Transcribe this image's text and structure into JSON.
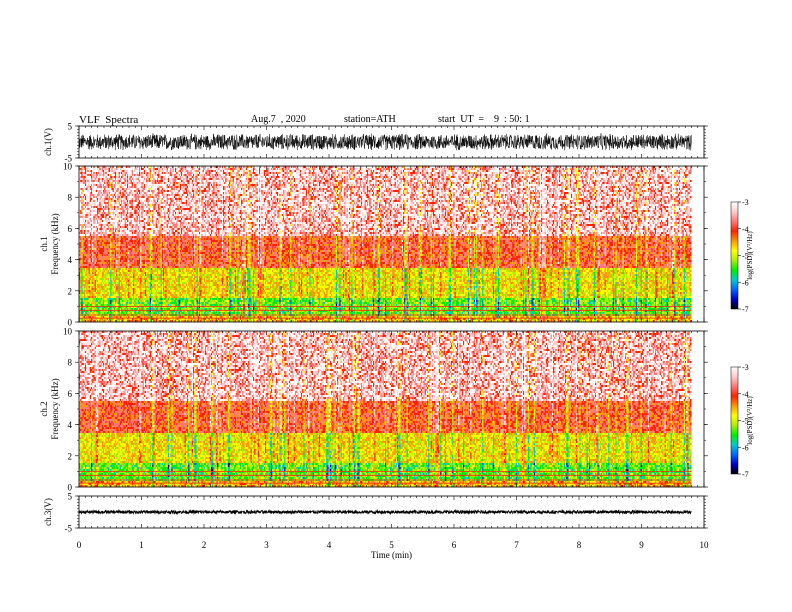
{
  "header": {
    "title": "VLF  Spectra",
    "date": "Aug.7  , 2020",
    "station": "station=ATH",
    "start_ut": "start  UT  =    9  : 50: 1"
  },
  "chart_data": [
    {
      "id": "ch1_waveform",
      "type": "line",
      "ylabel": "ch.1(V)",
      "ylim": [
        -5,
        5
      ],
      "yticks": [
        "5",
        "-5"
      ],
      "xlim": [
        0,
        10
      ],
      "data_end_min": 9.8,
      "band": [
        -2.8,
        2.8
      ],
      "color": "#000000"
    },
    {
      "id": "ch1_spectrogram",
      "type": "heatmap",
      "ylabel": "ch.1 Frequency  (kHz)",
      "ylim": [
        0,
        10
      ],
      "yticks": [
        "0",
        "2",
        "4",
        "6",
        "8",
        "10"
      ],
      "xlim": [
        0,
        10
      ],
      "colorbar": {
        "label": "log(PSD)(V²/Hz)",
        "ticks": [
          "-3",
          "-4",
          "-5",
          "-6",
          "-7"
        ],
        "range": [
          -7,
          -3
        ]
      }
    },
    {
      "id": "ch2_spectrogram",
      "type": "heatmap",
      "ylabel": "ch.2 Frequency  (kHz)",
      "ylim": [
        0,
        10
      ],
      "yticks": [
        "0",
        "2",
        "4",
        "6",
        "8",
        "10"
      ],
      "xlim": [
        0,
        10
      ],
      "colorbar": {
        "label": "log(PSD)(V²/Hz)",
        "ticks": [
          "-3",
          "-4",
          "-5",
          "-6",
          "-7"
        ],
        "range": [
          -7,
          -3
        ]
      }
    },
    {
      "id": "ch3_waveform",
      "type": "line",
      "ylabel": "ch.3(V)",
      "ylim": [
        -5,
        5
      ],
      "yticks": [
        "5",
        "-5"
      ],
      "xlim": [
        0,
        10
      ],
      "data_end_min": 9.8,
      "band": [
        -0.5,
        0.5
      ],
      "color": "#000000"
    }
  ],
  "xaxis": {
    "label": "Time  (min)",
    "ticks": [
      "0",
      "1",
      "2",
      "3",
      "4",
      "5",
      "6",
      "7",
      "8",
      "9",
      "10"
    ]
  },
  "colormap": [
    "#000000",
    "#0000cc",
    "#0066ff",
    "#00cccc",
    "#00ee00",
    "#aaee00",
    "#ffff00",
    "#ff9900",
    "#ff2200",
    "#ff7777",
    "#ffcccc",
    "#ffffff"
  ]
}
